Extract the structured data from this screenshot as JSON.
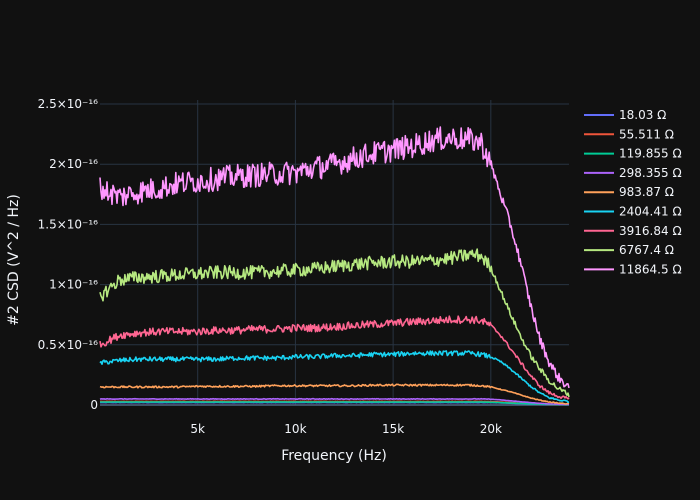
{
  "chart_data": {
    "type": "line",
    "xlabel": "Frequency (Hz)",
    "ylabel": "#2 CSD (V^2 / Hz)",
    "xlim": [
      0,
      24000
    ],
    "ylim": [
      0,
      2.5e-16
    ],
    "xticks": [
      {
        "value": 5000,
        "label": "5k"
      },
      {
        "value": 10000,
        "label": "10k"
      },
      {
        "value": 15000,
        "label": "15k"
      },
      {
        "value": 20000,
        "label": "20k"
      }
    ],
    "yticks": [
      {
        "value": 0,
        "label": "0"
      },
      {
        "value": 5e-17,
        "label": "0.5×10⁻¹⁶"
      },
      {
        "value": 1e-16,
        "label": "1×10⁻¹⁶"
      },
      {
        "value": 1.5e-16,
        "label": "1.5×10⁻¹⁶"
      },
      {
        "value": 2e-16,
        "label": "2×10⁻¹⁶"
      },
      {
        "value": 2.5e-16,
        "label": "2.5×10⁻¹⁶"
      }
    ],
    "grid": true,
    "legend_position": "right",
    "x": [
      0,
      1000,
      2000,
      3000,
      4000,
      5000,
      6000,
      7000,
      8000,
      9000,
      10000,
      11000,
      12000,
      13000,
      14000,
      15000,
      16000,
      17000,
      18000,
      19000,
      19500,
      20000,
      20500,
      21000,
      21500,
      22000,
      22500,
      23000,
      23500,
      24000
    ],
    "series": [
      {
        "name": "18.03 Ω",
        "color": "#636efa",
        "values": [
          2e-18,
          2e-18,
          2e-18,
          2e-18,
          2e-18,
          2e-18,
          2e-18,
          2e-18,
          2e-18,
          2e-18,
          2e-18,
          2e-18,
          2e-18,
          2e-18,
          2e-18,
          2e-18,
          2e-18,
          2e-18,
          2e-18,
          2e-18,
          2e-18,
          2e-18,
          1.8e-18,
          1.5e-18,
          1.2e-18,
          9e-19,
          6e-19,
          4e-19,
          3e-19,
          2e-19
        ]
      },
      {
        "name": "55.511 Ω",
        "color": "#EF553B",
        "values": [
          3e-18,
          3e-18,
          3e-18,
          3e-18,
          3e-18,
          3e-18,
          3e-18,
          3e-18,
          3e-18,
          3e-18,
          3e-18,
          3e-18,
          3e-18,
          3e-18,
          3e-18,
          3e-18,
          3e-18,
          3e-18,
          3e-18,
          3e-18,
          3e-18,
          2.8e-18,
          2.5e-18,
          2e-18,
          1.6e-18,
          1.2e-18,
          8e-19,
          5e-19,
          4e-19,
          3e-19
        ]
      },
      {
        "name": "119.855 Ω",
        "color": "#00cc96",
        "values": [
          2.5e-18,
          2.5e-18,
          2.5e-18,
          2.5e-18,
          2.5e-18,
          2.5e-18,
          2.5e-18,
          2.5e-18,
          2.5e-18,
          2.5e-18,
          2.5e-18,
          2.5e-18,
          2.5e-18,
          2.5e-18,
          2.5e-18,
          2.5e-18,
          2.5e-18,
          2.5e-18,
          2.5e-18,
          2.5e-18,
          2.5e-18,
          2.3e-18,
          2e-18,
          1.6e-18,
          1.3e-18,
          1e-18,
          7e-19,
          5e-19,
          3e-19,
          2e-19
        ]
      },
      {
        "name": "298.355 Ω",
        "color": "#ab63fa",
        "values": [
          5e-18,
          5e-18,
          5e-18,
          5e-18,
          5e-18,
          5e-18,
          5e-18,
          5e-18,
          5e-18,
          5e-18,
          5e-18,
          5e-18,
          5e-18,
          5e-18,
          5e-18,
          5e-18,
          5e-18,
          5e-18,
          5e-18,
          5e-18,
          5e-18,
          4.8e-18,
          4.2e-18,
          3.5e-18,
          2.8e-18,
          2e-18,
          1.4e-18,
          9e-19,
          6e-19,
          4e-19
        ]
      },
      {
        "name": "983.87 Ω",
        "color": "#FFA15A",
        "values": [
          1.5e-17,
          1.5e-17,
          1.5e-17,
          1.5e-17,
          1.5e-17,
          1.55e-17,
          1.55e-17,
          1.55e-17,
          1.55e-17,
          1.6e-17,
          1.6e-17,
          1.6e-17,
          1.6e-17,
          1.6e-17,
          1.65e-17,
          1.65e-17,
          1.65e-17,
          1.65e-17,
          1.65e-17,
          1.65e-17,
          1.6e-17,
          1.5e-17,
          1.3e-17,
          1.1e-17,
          8.5e-18,
          6e-18,
          4e-18,
          2.5e-18,
          1.5e-18,
          1e-18
        ]
      },
      {
        "name": "2404.41 Ω",
        "color": "#19d3f3",
        "values": [
          3.5e-17,
          3.7e-17,
          3.8e-17,
          3.8e-17,
          3.8e-17,
          3.8e-17,
          3.8e-17,
          3.9e-17,
          3.9e-17,
          3.9e-17,
          4e-17,
          4e-17,
          4.1e-17,
          4.1e-17,
          4.2e-17,
          4.2e-17,
          4.3e-17,
          4.3e-17,
          4.3e-17,
          4.3e-17,
          4.2e-17,
          4e-17,
          3.6e-17,
          3e-17,
          2.3e-17,
          1.6e-17,
          1e-17,
          6e-18,
          4e-18,
          3e-18
        ]
      },
      {
        "name": "3916.84 Ω",
        "color": "#FF6692",
        "values": [
          5e-17,
          5.8e-17,
          6e-17,
          6.1e-17,
          6.1e-17,
          6.1e-17,
          6.2e-17,
          6.2e-17,
          6.3e-17,
          6.3e-17,
          6.4e-17,
          6.4e-17,
          6.5e-17,
          6.6e-17,
          6.7e-17,
          6.8e-17,
          6.9e-17,
          7e-17,
          7.1e-17,
          7.1e-17,
          7e-17,
          6.6e-17,
          5.8e-17,
          4.7e-17,
          3.6e-17,
          2.5e-17,
          1.6e-17,
          1e-17,
          7e-18,
          5e-18
        ]
      },
      {
        "name": "6767.4 Ω",
        "color": "#B6E880",
        "values": [
          9e-17,
          1.04e-16,
          1.06e-16,
          1.07e-16,
          1.08e-16,
          1.09e-16,
          1.1e-16,
          1.1e-16,
          1.1e-16,
          1.11e-16,
          1.12e-16,
          1.13e-16,
          1.15e-16,
          1.17e-16,
          1.18e-16,
          1.19e-16,
          1.19e-16,
          1.2e-16,
          1.22e-16,
          1.25e-16,
          1.24e-16,
          1.14e-16,
          9.5e-17,
          7.6e-17,
          5.8e-17,
          4.2e-17,
          3e-17,
          2e-17,
          1.3e-17,
          9e-18
        ]
      },
      {
        "name": "11864.5 Ω",
        "color": "#FF97FF",
        "values": [
          1.8e-16,
          1.73e-16,
          1.77e-16,
          1.8e-16,
          1.84e-16,
          1.86e-16,
          1.88e-16,
          1.9e-16,
          1.91e-16,
          1.92e-16,
          1.93e-16,
          1.97e-16,
          2e-16,
          2.05e-16,
          2.09e-16,
          2.12e-16,
          2.15e-16,
          2.2e-16,
          2.22e-16,
          2.2e-16,
          2.18e-16,
          2e-16,
          1.75e-16,
          1.5e-16,
          1.2e-16,
          8.5e-17,
          5.5e-17,
          3.5e-17,
          2.2e-17,
          1.5e-17
        ]
      }
    ]
  }
}
